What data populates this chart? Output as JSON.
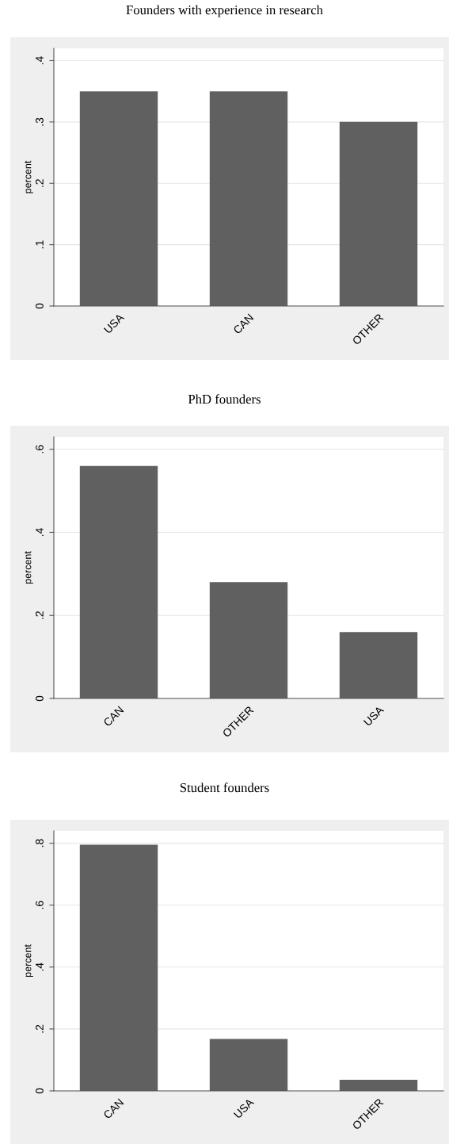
{
  "chart_data": [
    {
      "type": "bar",
      "title": "Founders with experience in research",
      "ylabel": "percent",
      "categories": [
        "USA",
        "CAN",
        "OTHER"
      ],
      "values": [
        0.35,
        0.35,
        0.3
      ],
      "color": "#606060",
      "ylim": [
        0,
        0.42
      ],
      "yticks": [
        {
          "value": 0,
          "label": "0"
        },
        {
          "value": 0.1,
          "label": ".1"
        },
        {
          "value": 0.2,
          "label": ".2"
        },
        {
          "value": 0.3,
          "label": ".3"
        },
        {
          "value": 0.4,
          "label": ".4"
        }
      ],
      "grid": "y"
    },
    {
      "type": "bar",
      "title": "PhD founders",
      "ylabel": "percent",
      "categories": [
        "CAN",
        "OTHER",
        "USA"
      ],
      "values": [
        0.56,
        0.28,
        0.16
      ],
      "color": "#606060",
      "ylim": [
        0,
        0.63
      ],
      "yticks": [
        {
          "value": 0,
          "label": "0"
        },
        {
          "value": 0.2,
          "label": ".2"
        },
        {
          "value": 0.4,
          "label": ".4"
        },
        {
          "value": 0.6,
          "label": ".6"
        }
      ],
      "grid": "y"
    },
    {
      "type": "bar",
      "title": "Student founders",
      "ylabel": "percent",
      "categories": [
        "CAN",
        "USA",
        "OTHER"
      ],
      "values": [
        0.795,
        0.168,
        0.036
      ],
      "color": "#606060",
      "ylim": [
        0,
        0.84
      ],
      "yticks": [
        {
          "value": 0,
          "label": "0"
        },
        {
          "value": 0.2,
          "label": ".2"
        },
        {
          "value": 0.4,
          "label": ".4"
        },
        {
          "value": 0.6,
          "label": ".6"
        },
        {
          "value": 0.8,
          "label": ".8"
        }
      ],
      "grid": "y"
    }
  ]
}
